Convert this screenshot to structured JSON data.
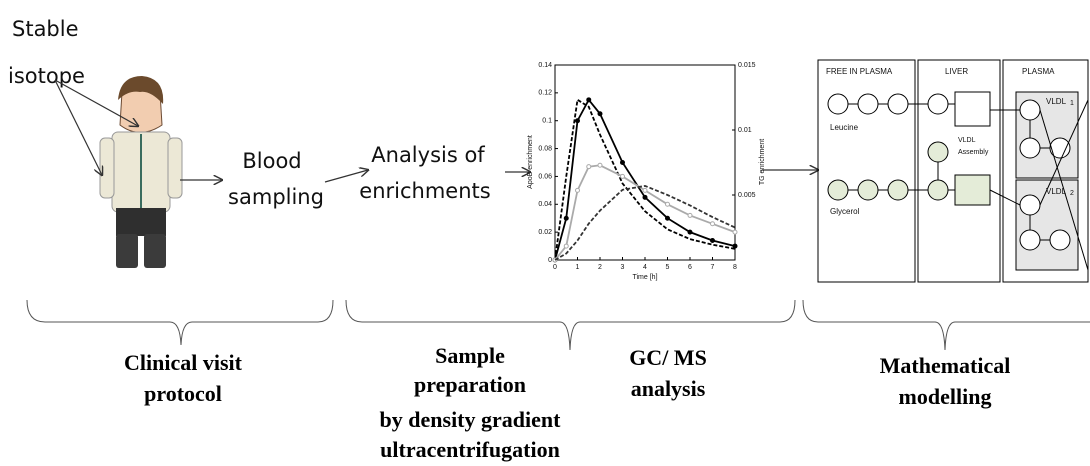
{
  "top_labels": {
    "isotope": [
      "Stable",
      "isotope"
    ],
    "blood": [
      "Blood",
      "sampling"
    ],
    "analysis": [
      "Analysis of",
      "enrichments"
    ]
  },
  "phases": [
    [
      "Clinical visit",
      "protocol"
    ],
    [
      "Sample",
      "preparation",
      "by density gradient",
      "ultracentrifugation"
    ],
    [
      "GC/ MS",
      "analysis"
    ],
    [
      "Mathematical",
      "modelling"
    ]
  ],
  "chart_data": {
    "type": "line",
    "xlabel": "Time [h]",
    "ylabel": "ApoB enrichment",
    "y2label": "TG enrichment",
    "x": [
      0,
      0.5,
      1,
      1.5,
      2,
      3,
      4,
      5,
      6,
      7,
      8
    ],
    "series": [
      {
        "color": "#000000",
        "style": "solid",
        "markers": true,
        "values": [
          0,
          0.03,
          0.1,
          0.115,
          0.105,
          0.07,
          0.045,
          0.03,
          0.02,
          0.014,
          0.01
        ]
      },
      {
        "color": "#000000",
        "style": "dashed",
        "markers": false,
        "values": [
          0,
          0.06,
          0.115,
          0.11,
          0.09,
          0.055,
          0.035,
          0.022,
          0.015,
          0.011,
          0.008
        ]
      },
      {
        "color": "#aaaaaa",
        "style": "solid",
        "markers": true,
        "values": [
          0,
          0.01,
          0.05,
          0.067,
          0.068,
          0.06,
          0.05,
          0.04,
          0.032,
          0.026,
          0.02
        ]
      },
      {
        "color": "#333333",
        "style": "dashed",
        "markers": false,
        "axis": "y2",
        "values": [
          0,
          0.0005,
          0.0015,
          0.0028,
          0.0038,
          0.0054,
          0.0057,
          0.005,
          0.0042,
          0.0033,
          0.0025
        ]
      }
    ],
    "xlim": [
      0,
      8
    ],
    "xticks": [
      0,
      1,
      2,
      3,
      4,
      5,
      6,
      7,
      8
    ],
    "ylim": [
      0,
      0.14
    ],
    "yticks": [
      0,
      0.02,
      0.04,
      0.06,
      0.08,
      0.1,
      0.12,
      0.14
    ],
    "y2lim": [
      0,
      0.015
    ],
    "y2ticks": [
      0.005,
      0.01,
      0.015
    ]
  },
  "model": {
    "compartments": [
      "FREE IN PLASMA",
      "LIVER",
      "PLASMA"
    ],
    "leucine": "Leucine",
    "glycerol": "Glycerol",
    "assembly": [
      "VLDL",
      "Assembly"
    ],
    "vldl1": [
      "VLDL",
      "1"
    ],
    "vldl2": [
      "VLDL",
      "2"
    ]
  }
}
